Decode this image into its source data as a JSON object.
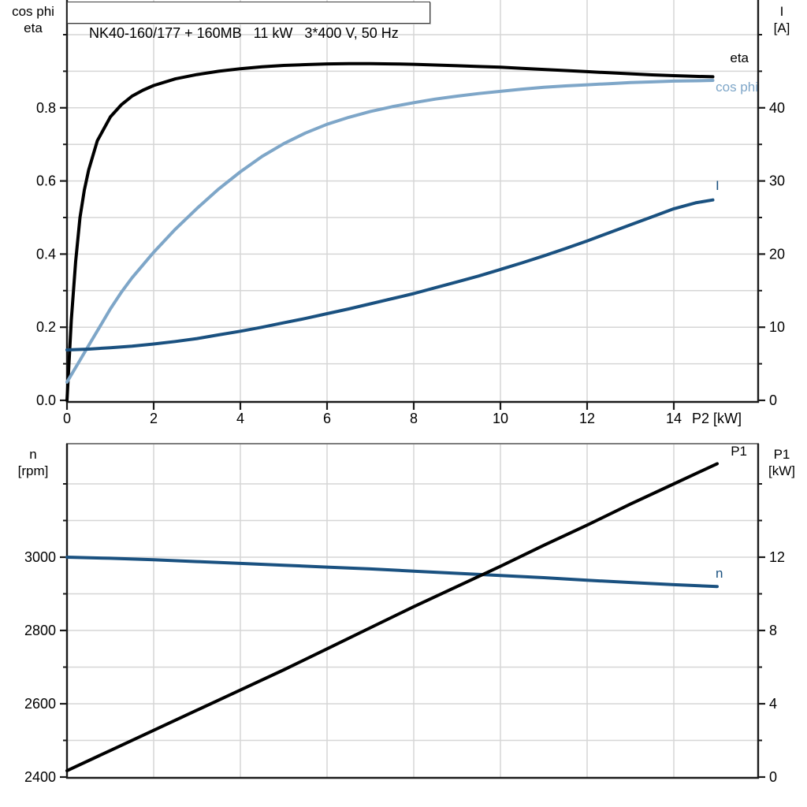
{
  "title": "NK40-160/177 + 160MB   11 kW   3*400 V, 50 Hz",
  "colors": {
    "black": "#000000",
    "light_blue": "#7EA6C8",
    "dark_blue": "#1A5180",
    "grid": "#D6D6D6",
    "axis": "#1A1A1A",
    "frame": "#7D7D7D",
    "text": "#000000"
  },
  "chart_data": [
    {
      "type": "line",
      "name": "motor-electrical-curves",
      "x": {
        "label": "P2 [kW]",
        "min": 0,
        "max": 15.9,
        "tick_values": [
          0,
          2,
          4,
          6,
          8,
          10,
          12,
          14
        ],
        "tick_labels": [
          "0",
          "2",
          "4",
          "6",
          "8",
          "10",
          "12",
          "14"
        ],
        "grid_values": [
          2,
          4,
          6,
          8,
          10,
          12,
          14
        ]
      },
      "y_left": {
        "label_lines": [
          "cos phi",
          "eta"
        ],
        "min": 0,
        "max": 1.095,
        "tick_values": [
          0,
          0.2,
          0.4,
          0.6,
          0.8
        ],
        "tick_labels": [
          "0.0",
          "0.2",
          "0.4",
          "0.6",
          "0.8"
        ],
        "minor_tick_values": [
          0.1,
          0.3,
          0.5,
          0.7,
          0.9,
          1.0
        ],
        "grid_values": [
          0.1,
          0.2,
          0.3,
          0.4,
          0.5,
          0.6,
          0.7,
          0.8,
          0.9,
          1.0
        ]
      },
      "y_right": {
        "label_lines": [
          "I",
          "[A]"
        ],
        "min": 0,
        "max": 54.7,
        "tick_values": [
          0,
          10,
          20,
          30,
          40
        ],
        "tick_labels": [
          "0",
          "10",
          "20",
          "30",
          "40"
        ],
        "minor_tick_values": [
          5,
          15,
          25,
          35,
          45,
          50
        ]
      },
      "series": [
        {
          "name": "eta",
          "label": "eta",
          "axis": "left",
          "color": "#000000",
          "points": [
            [
              0,
              0
            ],
            [
              0.1,
              0.22
            ],
            [
              0.2,
              0.38
            ],
            [
              0.3,
              0.5
            ],
            [
              0.4,
              0.575
            ],
            [
              0.5,
              0.63
            ],
            [
              0.7,
              0.71
            ],
            [
              1,
              0.775
            ],
            [
              1.25,
              0.808
            ],
            [
              1.5,
              0.832
            ],
            [
              1.75,
              0.848
            ],
            [
              2,
              0.861
            ],
            [
              2.5,
              0.879
            ],
            [
              3,
              0.891
            ],
            [
              3.5,
              0.9
            ],
            [
              4,
              0.907
            ],
            [
              4.5,
              0.912
            ],
            [
              5,
              0.916
            ],
            [
              5.5,
              0.918
            ],
            [
              6,
              0.92
            ],
            [
              6.5,
              0.921
            ],
            [
              7,
              0.921
            ],
            [
              7.5,
              0.92
            ],
            [
              8,
              0.919
            ],
            [
              8.5,
              0.917
            ],
            [
              9,
              0.915
            ],
            [
              9.5,
              0.913
            ],
            [
              10,
              0.911
            ],
            [
              10.5,
              0.908
            ],
            [
              11,
              0.905
            ],
            [
              11.5,
              0.902
            ],
            [
              12,
              0.899
            ],
            [
              12.5,
              0.896
            ],
            [
              13,
              0.893
            ],
            [
              13.5,
              0.89
            ],
            [
              14,
              0.888
            ],
            [
              14.5,
              0.886
            ],
            [
              14.9,
              0.885
            ]
          ]
        },
        {
          "name": "cos-phi",
          "label": "cos phi",
          "axis": "left",
          "color": "#7EA6C8",
          "points": [
            [
              0,
              0.05
            ],
            [
              0.25,
              0.1
            ],
            [
              0.5,
              0.15
            ],
            [
              0.75,
              0.2
            ],
            [
              1,
              0.25
            ],
            [
              1.25,
              0.295
            ],
            [
              1.5,
              0.335
            ],
            [
              2,
              0.405
            ],
            [
              2.5,
              0.468
            ],
            [
              3,
              0.525
            ],
            [
              3.5,
              0.578
            ],
            [
              4,
              0.625
            ],
            [
              4.5,
              0.667
            ],
            [
              5,
              0.702
            ],
            [
              5.5,
              0.731
            ],
            [
              6,
              0.755
            ],
            [
              6.5,
              0.774
            ],
            [
              7,
              0.79
            ],
            [
              7.5,
              0.803
            ],
            [
              8,
              0.814
            ],
            [
              8.5,
              0.824
            ],
            [
              9,
              0.832
            ],
            [
              9.5,
              0.839
            ],
            [
              10,
              0.845
            ],
            [
              10.5,
              0.851
            ],
            [
              11,
              0.856
            ],
            [
              11.5,
              0.86
            ],
            [
              12,
              0.863
            ],
            [
              12.5,
              0.866
            ],
            [
              13,
              0.869
            ],
            [
              13.5,
              0.871
            ],
            [
              14,
              0.873
            ],
            [
              14.5,
              0.874
            ],
            [
              14.9,
              0.875
            ]
          ]
        },
        {
          "name": "current",
          "label": "I",
          "axis": "right",
          "color": "#1A5180",
          "points": [
            [
              0,
              6.9
            ],
            [
              0.5,
              7.0
            ],
            [
              1,
              7.2
            ],
            [
              1.5,
              7.4
            ],
            [
              2,
              7.7
            ],
            [
              2.5,
              8.05
            ],
            [
              3,
              8.45
            ],
            [
              3.5,
              8.95
            ],
            [
              4,
              9.45
            ],
            [
              4.5,
              10.0
            ],
            [
              5,
              10.6
            ],
            [
              5.5,
              11.2
            ],
            [
              6,
              11.85
            ],
            [
              6.5,
              12.5
            ],
            [
              7,
              13.2
            ],
            [
              7.5,
              13.9
            ],
            [
              8,
              14.6
            ],
            [
              8.5,
              15.4
            ],
            [
              9,
              16.2
            ],
            [
              9.5,
              17.0
            ],
            [
              10,
              17.9
            ],
            [
              10.5,
              18.8
            ],
            [
              11,
              19.75
            ],
            [
              11.5,
              20.75
            ],
            [
              12,
              21.8
            ],
            [
              12.5,
              22.9
            ],
            [
              13,
              24.0
            ],
            [
              13.5,
              25.1
            ],
            [
              14,
              26.2
            ],
            [
              14.5,
              27.0
            ],
            [
              14.9,
              27.4
            ]
          ]
        }
      ]
    },
    {
      "type": "line",
      "name": "speed-and-input-power-curves",
      "x": {
        "min": 0,
        "max": 15.9,
        "grid_values": [
          2,
          4,
          6,
          8,
          10,
          12,
          14
        ]
      },
      "y_left": {
        "label_lines": [
          "n",
          "[rpm]"
        ],
        "min": 2400,
        "max": 3310,
        "tick_values": [
          2400,
          2600,
          2800,
          3000
        ],
        "tick_labels": [
          "2400",
          "2600",
          "2800",
          "3000"
        ],
        "minor_tick_values": [
          2500,
          2700,
          2900,
          3100,
          3200
        ],
        "grid_values": [
          2500,
          2600,
          2700,
          2800,
          2900,
          3000,
          3100,
          3200
        ]
      },
      "y_right": {
        "label_lines": [
          "P1",
          "[kW]"
        ],
        "min": 0,
        "max": 18.2,
        "tick_values": [
          0,
          4,
          8,
          12
        ],
        "tick_labels": [
          "0",
          "4",
          "8",
          "12"
        ],
        "minor_tick_values": [
          2,
          6,
          10,
          14,
          16
        ]
      },
      "series": [
        {
          "name": "speed",
          "label": "n",
          "axis": "left",
          "color": "#1A5180",
          "points": [
            [
              0,
              3000
            ],
            [
              1,
              2997
            ],
            [
              2,
              2993
            ],
            [
              3,
              2988
            ],
            [
              4,
              2983
            ],
            [
              5,
              2978
            ],
            [
              6,
              2973
            ],
            [
              7,
              2968
            ],
            [
              8,
              2962
            ],
            [
              9,
              2956
            ],
            [
              10,
              2950
            ],
            [
              11,
              2944
            ],
            [
              12,
              2937
            ],
            [
              13,
              2931
            ],
            [
              14,
              2925
            ],
            [
              15,
              2920
            ]
          ]
        },
        {
          "name": "input-power",
          "label": "P1",
          "axis": "right",
          "color": "#000000",
          "points": [
            [
              0,
              0.35
            ],
            [
              1,
              1.45
            ],
            [
              2,
              2.55
            ],
            [
              3,
              3.65
            ],
            [
              4,
              4.75
            ],
            [
              5,
              5.85
            ],
            [
              6,
              7.0
            ],
            [
              7,
              8.15
            ],
            [
              8,
              9.3
            ],
            [
              9,
              10.4
            ],
            [
              10,
              11.5
            ],
            [
              11,
              12.65
            ],
            [
              12,
              13.75
            ],
            [
              13,
              14.9
            ],
            [
              14,
              16.0
            ],
            [
              15,
              17.1
            ]
          ]
        }
      ]
    }
  ]
}
